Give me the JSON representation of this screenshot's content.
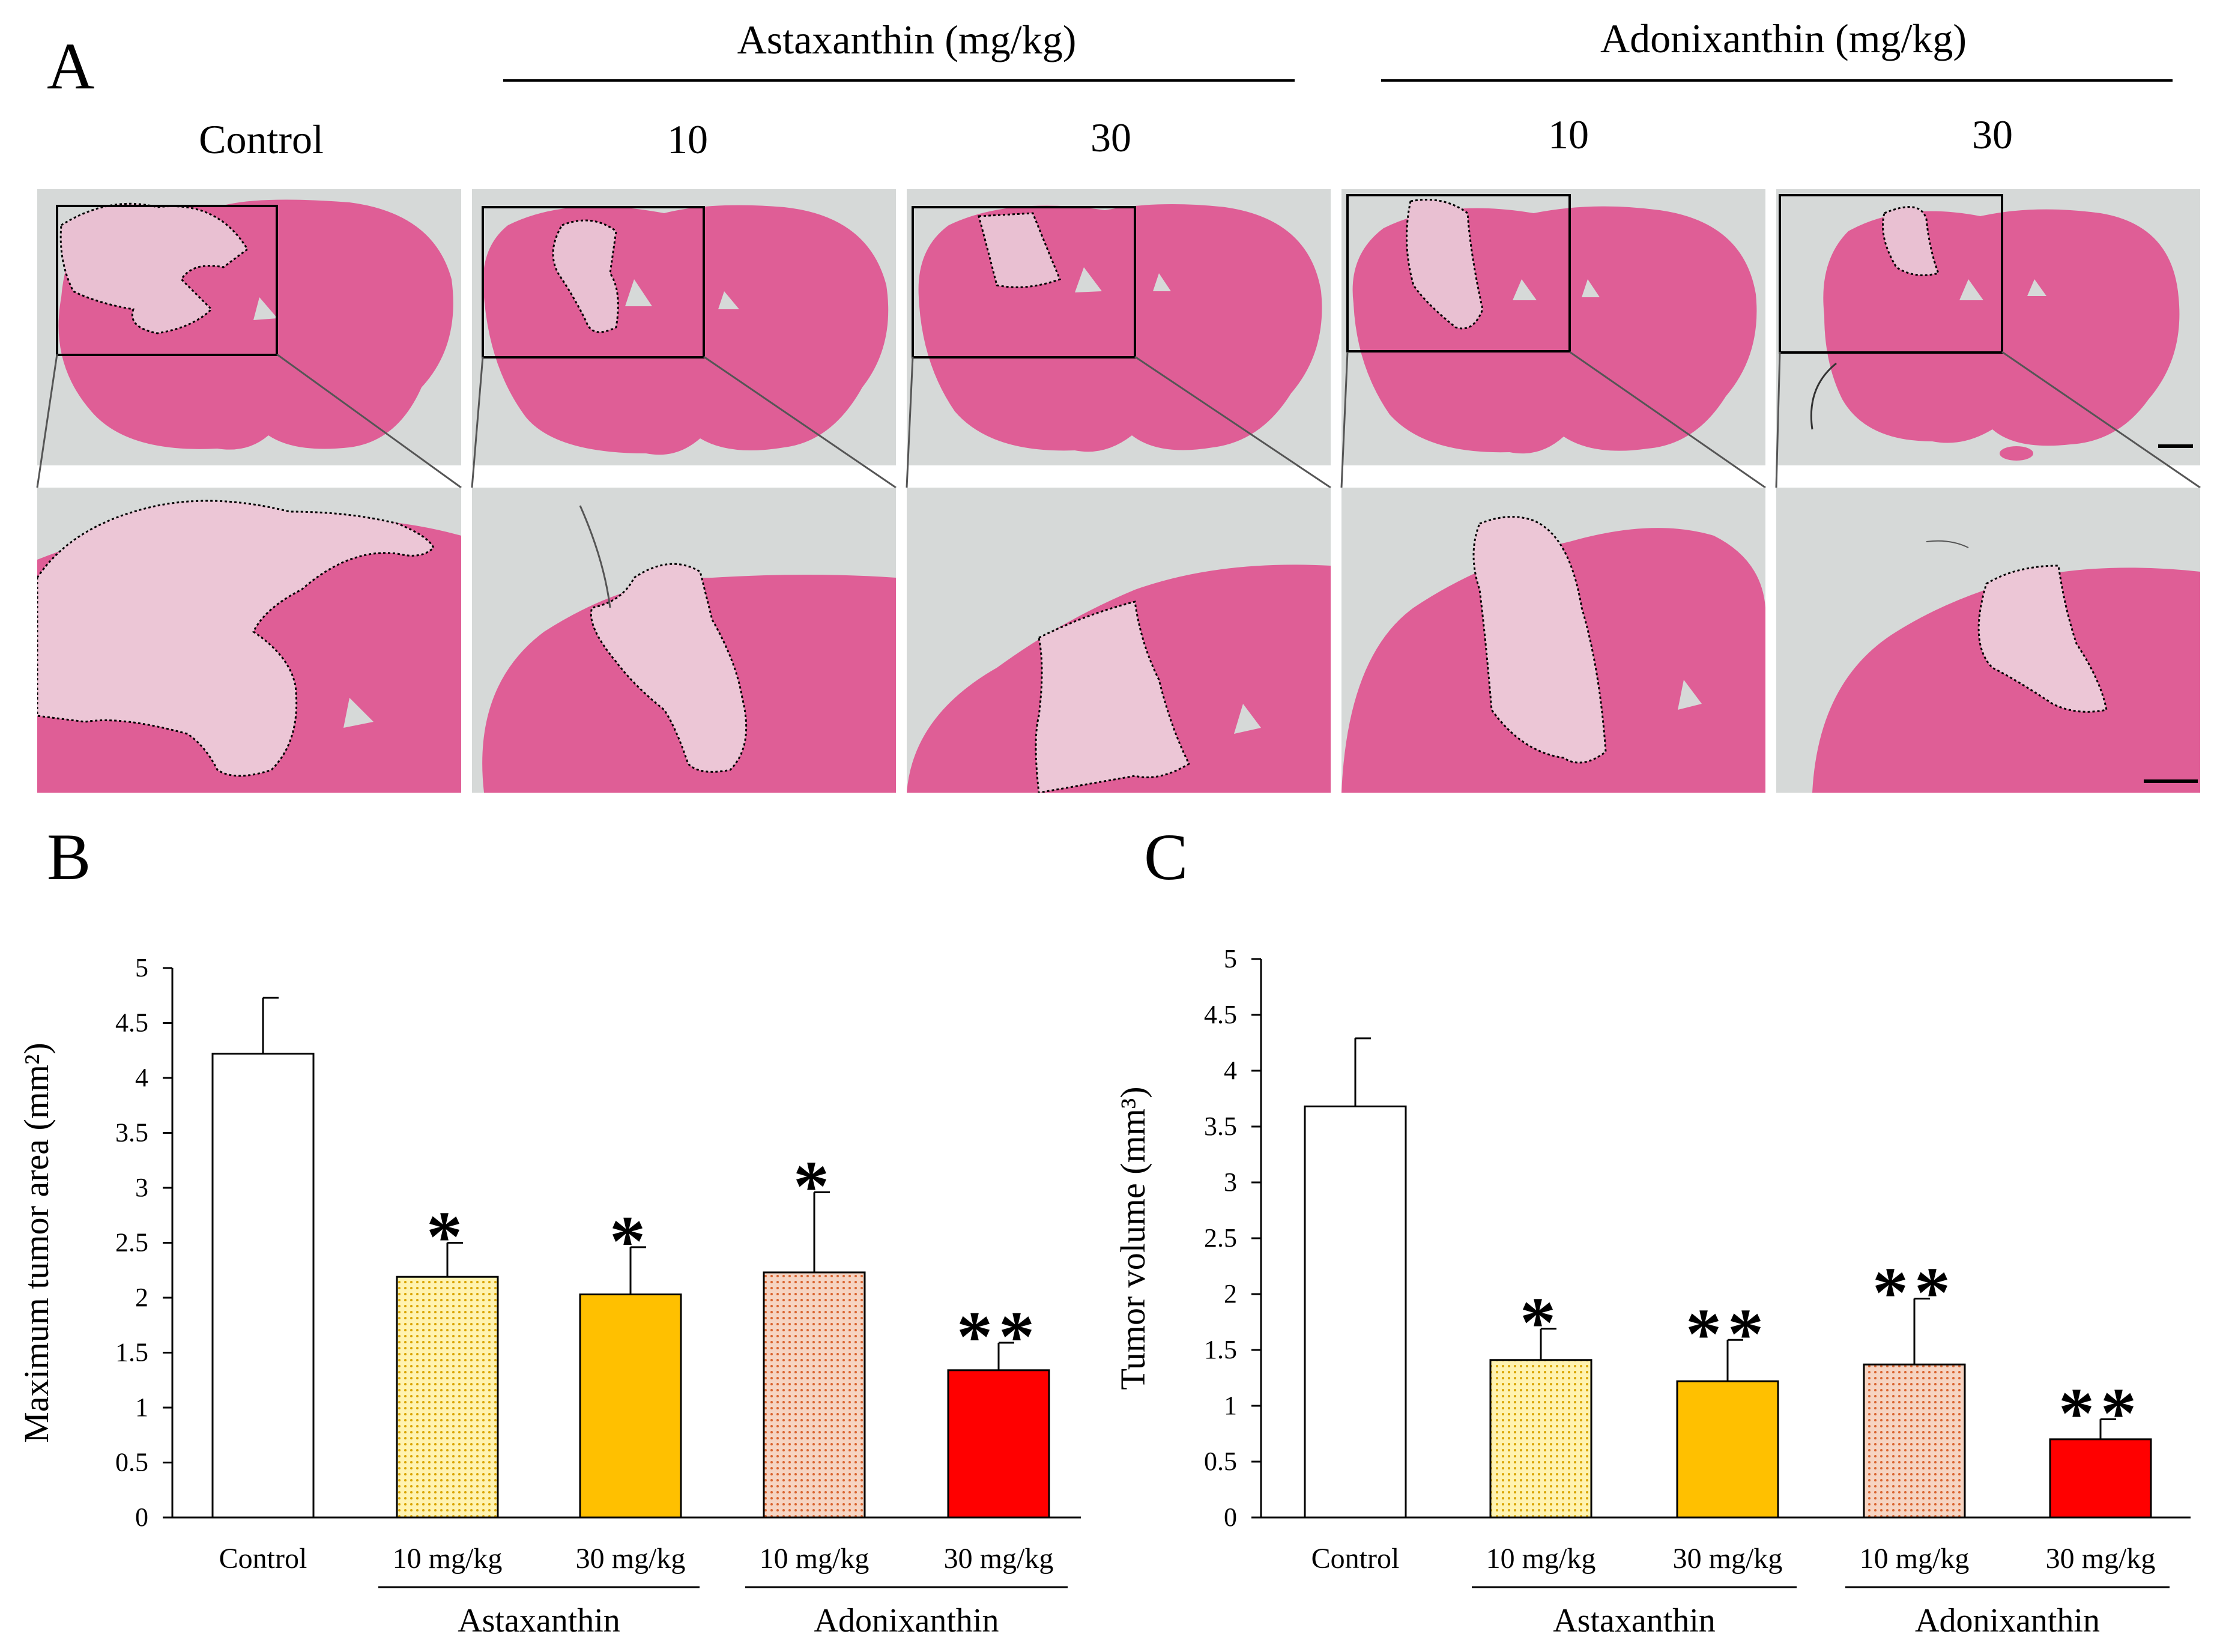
{
  "panel_a": {
    "letter": "A",
    "group_headers": [
      {
        "label": "Astaxanthin (mg/kg)"
      },
      {
        "label": "Adonixanthin (mg/kg)"
      }
    ],
    "column_labels": [
      "Control",
      "10",
      "30",
      "10",
      "30"
    ]
  },
  "colors": {
    "tissue": "#df5e96",
    "background": "#d6d9d8",
    "astaxanthin_30": "#ffc000",
    "adonixanthin_30": "#ff0000",
    "astaxanthin_10_fill": "#fff3b0",
    "adonixanthin_10_fill": "#f6d4c2"
  },
  "chart_data": [
    {
      "panel": "B",
      "type": "bar",
      "ylabel": "Maximum tumor area (mm²)",
      "ylim": [
        0,
        5
      ],
      "yticks": [
        "0",
        "0.5",
        "1",
        "1.5",
        "2",
        "2.5",
        "3",
        "3.5",
        "4",
        "4.5",
        "5"
      ],
      "categories": [
        "Control",
        "10 mg/kg",
        "30 mg/kg",
        "10 mg/kg",
        "30 mg/kg"
      ],
      "values": [
        4.22,
        2.19,
        2.03,
        2.23,
        1.34
      ],
      "errors": [
        0.51,
        0.31,
        0.43,
        0.73,
        0.25
      ],
      "significance": [
        "",
        "*",
        "*",
        "*",
        "**"
      ],
      "fills": [
        "white",
        "dot-yellow",
        "solid-orange",
        "dot-brown",
        "solid-red"
      ],
      "groups": [
        {
          "label": "Astaxanthin",
          "from": 1,
          "to": 2
        },
        {
          "label": "Adonixanthin",
          "from": 3,
          "to": 4
        }
      ]
    },
    {
      "panel": "C",
      "type": "bar",
      "ylabel": "Tumor volume (mm³)",
      "ylim": [
        0,
        5
      ],
      "yticks": [
        "0",
        "0.5",
        "1",
        "1.5",
        "2",
        "2.5",
        "3",
        "3.5",
        "4",
        "4.5",
        "5"
      ],
      "categories": [
        "Control",
        "10 mg/kg",
        "30 mg/kg",
        "10 mg/kg",
        "30 mg/kg"
      ],
      "values": [
        3.68,
        1.41,
        1.22,
        1.37,
        0.7
      ],
      "errors": [
        0.61,
        0.28,
        0.37,
        0.59,
        0.18
      ],
      "significance": [
        "",
        "*",
        "**",
        "**",
        "**"
      ],
      "fills": [
        "white",
        "dot-yellow",
        "solid-orange",
        "dot-brown",
        "solid-red"
      ],
      "groups": [
        {
          "label": "Astaxanthin",
          "from": 1,
          "to": 2
        },
        {
          "label": "Adonixanthin",
          "from": 3,
          "to": 4
        }
      ]
    }
  ]
}
